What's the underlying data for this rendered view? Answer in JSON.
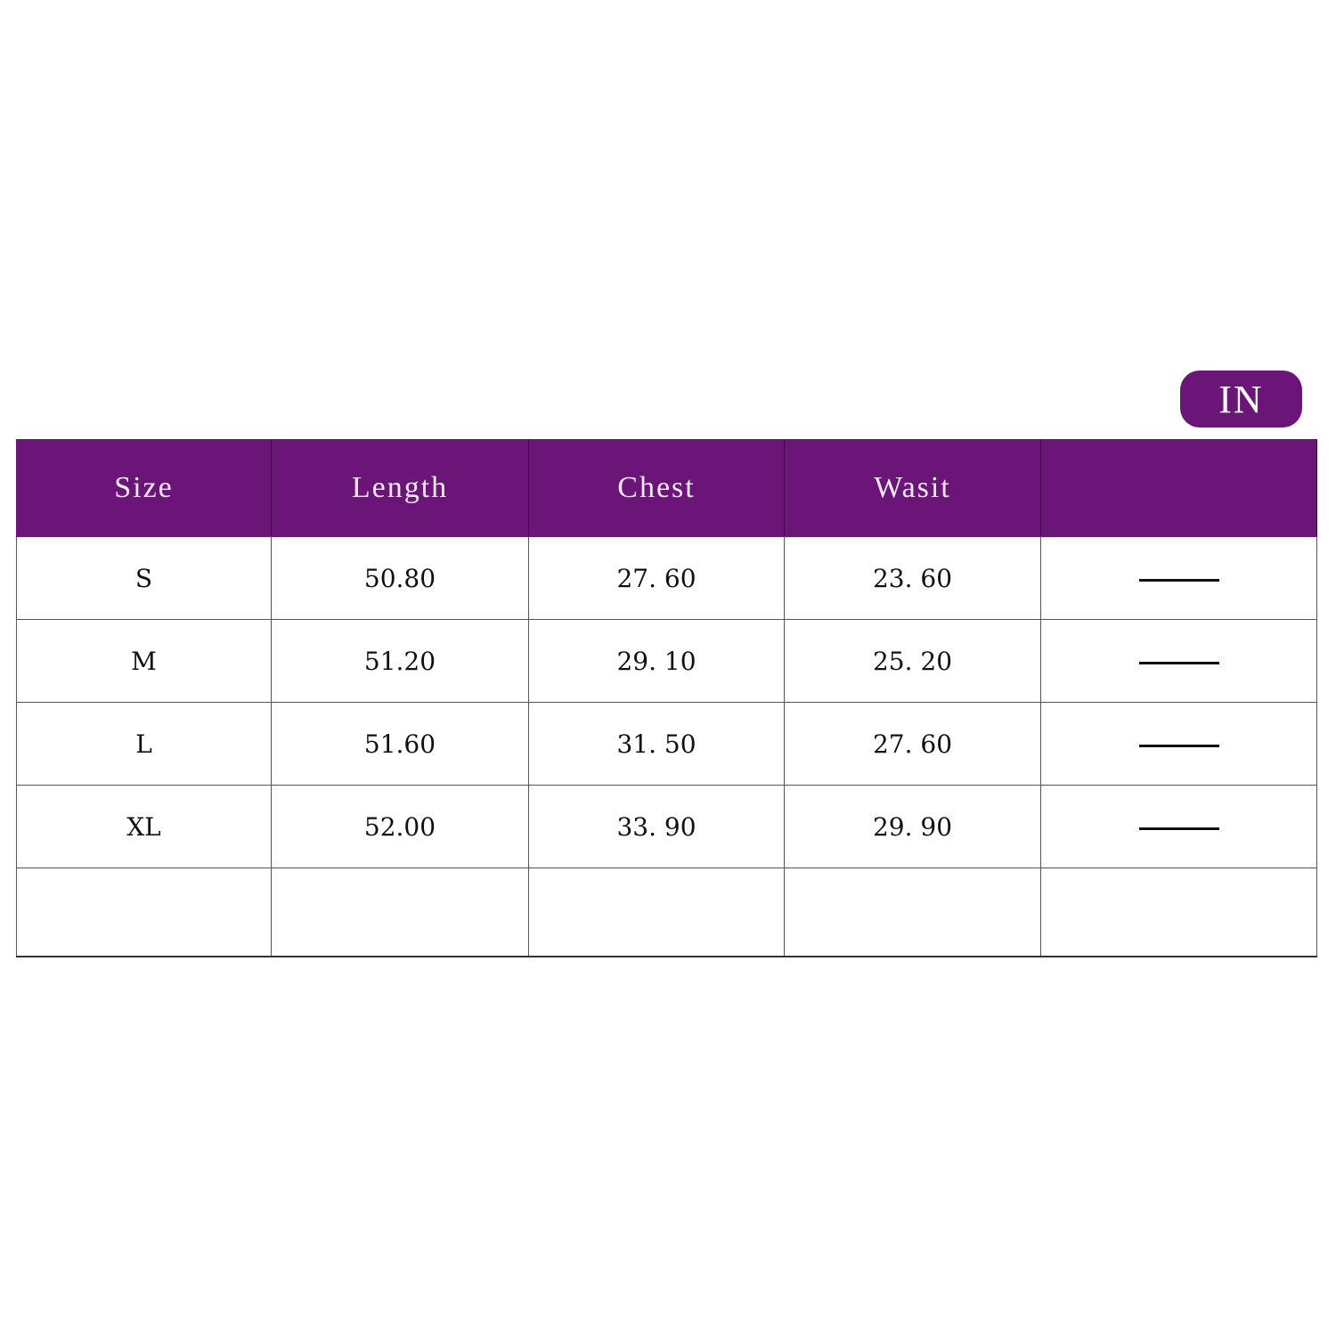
{
  "unit_badge": "IN",
  "accent_color": "#6a1577",
  "table": {
    "headers": [
      "Size",
      "Length",
      "Chest",
      "Wasit",
      ""
    ],
    "rows": [
      [
        "S",
        "50.80",
        "27. 60",
        "23. 60"
      ],
      [
        "M",
        "51.20",
        "29. 10",
        "25. 20"
      ],
      [
        "L",
        "51.60",
        "31. 50",
        "27. 60"
      ],
      [
        "XL",
        "52.00",
        "33. 90",
        "29. 90"
      ]
    ]
  }
}
